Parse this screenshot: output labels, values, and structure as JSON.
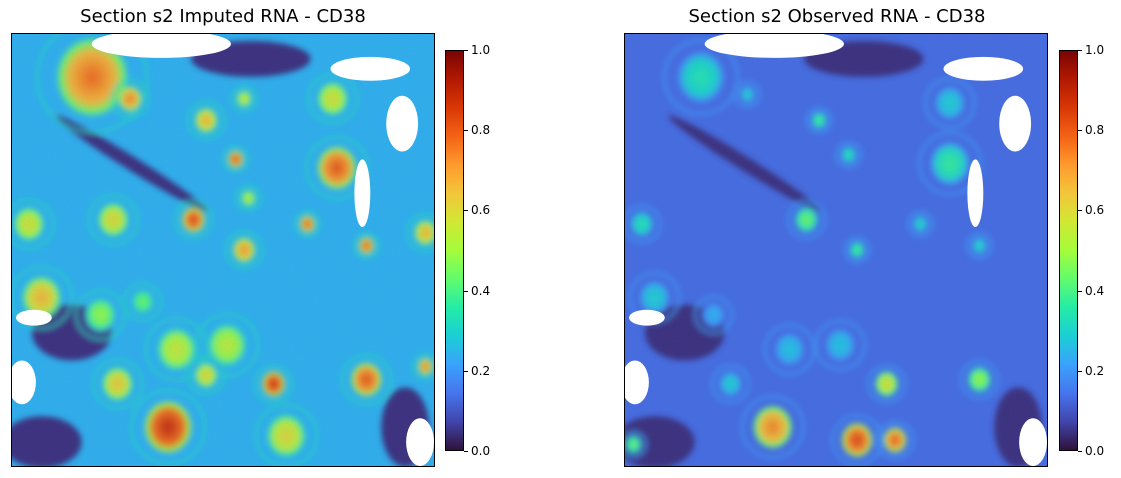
{
  "colors": {
    "colormap": [
      "#30123b",
      "#4145ab",
      "#4675ed",
      "#39a2fc",
      "#1bcfd4",
      "#24eca6",
      "#61fc6c",
      "#a4fc3b",
      "#d1e834",
      "#f3c63a",
      "#fe9b2d",
      "#f36315",
      "#d93806",
      "#b11901",
      "#7a0403"
    ],
    "mask": "#ffffff",
    "frame": "#000000"
  },
  "chart_data": [
    {
      "type": "heatmap",
      "title": "Section s2 Imputed RNA - CD38",
      "colorbar": {
        "vmin": 0.0,
        "vmax": 1.0,
        "ticks": [
          "0.0",
          "0.2",
          "0.4",
          "0.6",
          "0.8",
          "1.0"
        ]
      },
      "background_level": 0.24,
      "regions": [
        {
          "x": 0.19,
          "y": 0.1,
          "r": 0.09,
          "v": 0.78
        },
        {
          "x": 0.28,
          "y": 0.15,
          "r": 0.03,
          "v": 0.75
        },
        {
          "x": 0.46,
          "y": 0.2,
          "r": 0.03,
          "v": 0.68
        },
        {
          "x": 0.55,
          "y": 0.15,
          "r": 0.02,
          "v": 0.58
        },
        {
          "x": 0.76,
          "y": 0.15,
          "r": 0.04,
          "v": 0.6
        },
        {
          "x": 0.77,
          "y": 0.31,
          "r": 0.05,
          "v": 0.82
        },
        {
          "x": 0.53,
          "y": 0.29,
          "r": 0.02,
          "v": 0.82
        },
        {
          "x": 0.56,
          "y": 0.38,
          "r": 0.02,
          "v": 0.55
        },
        {
          "x": 0.43,
          "y": 0.43,
          "r": 0.03,
          "v": 0.85
        },
        {
          "x": 0.24,
          "y": 0.43,
          "r": 0.04,
          "v": 0.62
        },
        {
          "x": 0.04,
          "y": 0.44,
          "r": 0.04,
          "v": 0.6
        },
        {
          "x": 0.7,
          "y": 0.44,
          "r": 0.02,
          "v": 0.8
        },
        {
          "x": 0.55,
          "y": 0.5,
          "r": 0.03,
          "v": 0.72
        },
        {
          "x": 0.84,
          "y": 0.49,
          "r": 0.02,
          "v": 0.8
        },
        {
          "x": 0.98,
          "y": 0.46,
          "r": 0.03,
          "v": 0.68
        },
        {
          "x": 0.07,
          "y": 0.61,
          "r": 0.05,
          "v": 0.68
        },
        {
          "x": 0.21,
          "y": 0.65,
          "r": 0.04,
          "v": 0.5
        },
        {
          "x": 0.31,
          "y": 0.62,
          "r": 0.03,
          "v": 0.45
        },
        {
          "x": 0.39,
          "y": 0.73,
          "r": 0.05,
          "v": 0.58
        },
        {
          "x": 0.51,
          "y": 0.72,
          "r": 0.05,
          "v": 0.56
        },
        {
          "x": 0.46,
          "y": 0.79,
          "r": 0.03,
          "v": 0.62
        },
        {
          "x": 0.25,
          "y": 0.81,
          "r": 0.04,
          "v": 0.65
        },
        {
          "x": 0.62,
          "y": 0.81,
          "r": 0.03,
          "v": 0.88
        },
        {
          "x": 0.84,
          "y": 0.8,
          "r": 0.04,
          "v": 0.82
        },
        {
          "x": 0.37,
          "y": 0.91,
          "r": 0.06,
          "v": 0.9
        },
        {
          "x": 0.65,
          "y": 0.93,
          "r": 0.05,
          "v": 0.62
        },
        {
          "x": 0.98,
          "y": 0.77,
          "r": 0.02,
          "v": 0.75
        }
      ]
    },
    {
      "type": "heatmap",
      "title": "Section s2 Observed RNA - CD38",
      "colorbar": {
        "vmin": 0.0,
        "vmax": 1.0,
        "ticks": [
          "0.0",
          "0.2",
          "0.4",
          "0.6",
          "0.8",
          "1.0"
        ]
      },
      "background_level": 0.13,
      "regions": [
        {
          "x": 0.18,
          "y": 0.1,
          "r": 0.06,
          "v": 0.35
        },
        {
          "x": 0.29,
          "y": 0.14,
          "r": 0.02,
          "v": 0.3
        },
        {
          "x": 0.46,
          "y": 0.2,
          "r": 0.02,
          "v": 0.4
        },
        {
          "x": 0.77,
          "y": 0.16,
          "r": 0.04,
          "v": 0.3
        },
        {
          "x": 0.77,
          "y": 0.3,
          "r": 0.05,
          "v": 0.38
        },
        {
          "x": 0.53,
          "y": 0.28,
          "r": 0.02,
          "v": 0.35
        },
        {
          "x": 0.43,
          "y": 0.43,
          "r": 0.03,
          "v": 0.45
        },
        {
          "x": 0.04,
          "y": 0.44,
          "r": 0.03,
          "v": 0.35
        },
        {
          "x": 0.55,
          "y": 0.5,
          "r": 0.02,
          "v": 0.4
        },
        {
          "x": 0.7,
          "y": 0.44,
          "r": 0.02,
          "v": 0.32
        },
        {
          "x": 0.84,
          "y": 0.49,
          "r": 0.02,
          "v": 0.32
        },
        {
          "x": 0.07,
          "y": 0.61,
          "r": 0.04,
          "v": 0.3
        },
        {
          "x": 0.21,
          "y": 0.65,
          "r": 0.03,
          "v": 0.25
        },
        {
          "x": 0.39,
          "y": 0.73,
          "r": 0.04,
          "v": 0.28
        },
        {
          "x": 0.51,
          "y": 0.72,
          "r": 0.04,
          "v": 0.28
        },
        {
          "x": 0.25,
          "y": 0.81,
          "r": 0.03,
          "v": 0.3
        },
        {
          "x": 0.62,
          "y": 0.81,
          "r": 0.03,
          "v": 0.6
        },
        {
          "x": 0.84,
          "y": 0.8,
          "r": 0.03,
          "v": 0.5
        },
        {
          "x": 0.35,
          "y": 0.91,
          "r": 0.05,
          "v": 0.75
        },
        {
          "x": 0.55,
          "y": 0.94,
          "r": 0.04,
          "v": 0.85
        },
        {
          "x": 0.64,
          "y": 0.94,
          "r": 0.03,
          "v": 0.8
        },
        {
          "x": 0.02,
          "y": 0.95,
          "r": 0.02,
          "v": 0.45
        }
      ]
    }
  ]
}
